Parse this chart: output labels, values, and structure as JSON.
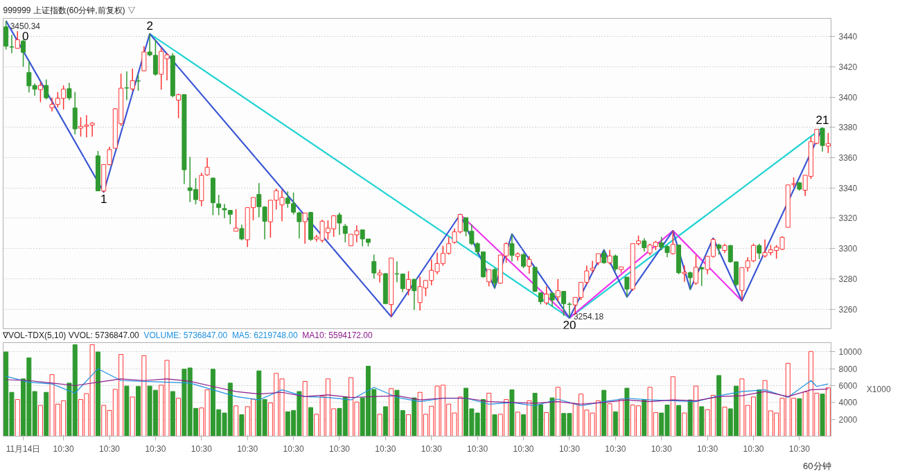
{
  "chart_data": [
    {
      "type": "candlestick",
      "title": "999999 上证指数(60分钟,前复权) ▽",
      "categories": [
        null,
        null,
        null,
        null,
        null,
        null,
        null,
        null,
        null,
        null,
        null,
        null,
        null,
        null,
        null,
        null,
        null,
        null,
        null,
        null,
        null,
        null,
        null,
        null,
        null,
        null,
        null,
        null,
        null,
        null,
        null,
        null,
        null,
        null,
        null,
        null,
        null,
        null,
        null,
        null,
        null,
        null,
        null,
        null,
        null,
        null,
        null,
        null,
        null,
        null,
        null,
        null,
        null,
        null,
        null,
        null,
        null,
        null,
        null,
        null,
        null,
        null,
        null,
        null,
        null,
        null,
        null,
        null,
        null,
        null,
        null,
        null,
        null,
        null,
        null,
        null,
        null,
        null,
        null,
        null,
        null,
        null,
        null,
        null,
        null,
        null,
        null,
        null,
        null,
        null,
        null,
        null,
        null,
        null,
        null,
        null,
        null,
        null,
        null,
        null,
        null,
        null,
        null,
        null,
        null,
        null,
        null,
        null,
        null,
        null,
        null,
        null,
        null,
        null,
        null,
        null,
        null,
        null,
        null,
        null,
        null,
        null,
        null,
        null,
        null,
        null,
        null,
        null,
        null,
        null,
        null,
        null,
        null,
        null,
        null,
        null,
        null,
        null,
        null,
        null,
        null,
        null,
        null,
        null
      ],
      "ohlc": [
        [
          3446.4,
          3450.34,
          3431.4,
          3433.6
        ],
        [
          3433.2,
          3441,
          3429,
          3433.0
        ],
        [
          3432.2,
          3443.5,
          3432,
          3437.9
        ],
        [
          3437,
          3438,
          3420,
          3429.5
        ],
        [
          3416.2,
          3424,
          3403,
          3407.4
        ],
        [
          3407.7,
          3409,
          3401,
          3405.2
        ],
        [
          3404.9,
          3410,
          3396.6,
          3407.7
        ],
        [
          3407.7,
          3411.7,
          3398.5,
          3399.5
        ],
        [
          3392.9,
          3399.6,
          3390.6,
          3395.2
        ],
        [
          3395.2,
          3403.4,
          3393.2,
          3399.2
        ],
        [
          3399.2,
          3407.7,
          3391.8,
          3405.2
        ],
        [
          3405.6,
          3409.4,
          3398,
          3399.5
        ],
        [
          3392.8,
          3403.4,
          3375.3,
          3379
        ],
        [
          3379.5,
          3386.7,
          3373.9,
          3380.7
        ],
        [
          3380.7,
          3388,
          3373.4,
          3381.5
        ],
        [
          3381.5,
          3383.5,
          3373.9,
          3382.8
        ],
        [
          3361.2,
          3364.4,
          3338,
          3338.1
        ],
        [
          3338,
          3355.5,
          3337.3,
          3355.5
        ],
        [
          3355.4,
          3367.2,
          3355,
          3365.3
        ],
        [
          3366.2,
          3392.7,
          3366,
          3392.3
        ],
        [
          3382.4,
          3415.5,
          3381,
          3405.9
        ],
        [
          3406.1,
          3417,
          3398,
          3406
        ],
        [
          3405.4,
          3418.8,
          3404,
          3410.8
        ],
        [
          3410.7,
          3414.8,
          3404.2,
          3410.6
        ],
        [
          3417.4,
          3433.6,
          3417,
          3429.8
        ],
        [
          3429.8,
          3441.8,
          3427,
          3427.9
        ],
        [
          3427.6,
          3437.9,
          3414.1,
          3415.1
        ],
        [
          3415.1,
          3432.6,
          3404.9,
          3430.2
        ],
        [
          3425.3,
          3429,
          3411,
          3427.9
        ],
        [
          3427.3,
          3429,
          3399.9,
          3400.9
        ],
        [
          3398,
          3402.3,
          3386.1,
          3401.6
        ],
        [
          3401.7,
          3401.7,
          3342.6,
          3352
        ],
        [
          3340.1,
          3360.5,
          3330.6,
          3338.3
        ],
        [
          3339,
          3346.5,
          3329.2,
          3332.3
        ],
        [
          3331.6,
          3350.1,
          3328,
          3348.3
        ],
        [
          3348.7,
          3360,
          3348,
          3353.7
        ],
        [
          3346.5,
          3347,
          3322,
          3330.2
        ],
        [
          3329.5,
          3335.4,
          3322,
          3327
        ],
        [
          3326.4,
          3329.5,
          3320,
          3325.5
        ],
        [
          3325.2,
          3325.5,
          3316,
          3322.6
        ],
        [
          3311.4,
          3326,
          3311.4,
          3313.5
        ],
        [
          3313.2,
          3315.7,
          3305.4,
          3306.3
        ],
        [
          3305.8,
          3327,
          3301,
          3327
        ],
        [
          3327,
          3333.7,
          3318.6,
          3333.7
        ],
        [
          3335.7,
          3343.2,
          3320.7,
          3327.6
        ],
        [
          3327.4,
          3328,
          3306,
          3318
        ],
        [
          3317.7,
          3331.9,
          3307.2,
          3331.9
        ],
        [
          3331.9,
          3339.6,
          3325.8,
          3338.2
        ],
        [
          3328.8,
          3338.7,
          3318,
          3333.7
        ],
        [
          3333.3,
          3337.7,
          3327,
          3329.7
        ],
        [
          3329.7,
          3337,
          3322.5,
          3324
        ],
        [
          3323.6,
          3324.3,
          3306.7,
          3317.7
        ],
        [
          3317.7,
          3323.4,
          3303.2,
          3323.4
        ],
        [
          3323.8,
          3324.3,
          3305,
          3306
        ],
        [
          3306.3,
          3309,
          3304.5,
          3307.6
        ],
        [
          3305.4,
          3319,
          3304,
          3318
        ],
        [
          3310.5,
          3318.6,
          3305.8,
          3313.5
        ],
        [
          3313,
          3322,
          3307.7,
          3321.6
        ],
        [
          3322.2,
          3323.8,
          3309,
          3316.8
        ],
        [
          3314.8,
          3316.2,
          3304.1,
          3309.9
        ],
        [
          3301.8,
          3309.4,
          3301.8,
          3309.4
        ],
        [
          3309,
          3315.3,
          3304.1,
          3311.7
        ],
        [
          3312.3,
          3312.3,
          3301.4,
          3306.3
        ],
        [
          3306.3,
          3306.3,
          3301.4,
          3304
        ],
        [
          3291.4,
          3296,
          3280.2,
          3283.8
        ],
        [
          3282.5,
          3286,
          3277.5,
          3283.8
        ],
        [
          3283.4,
          3283.8,
          3263.6,
          3263.6
        ],
        [
          3263,
          3293.7,
          3255,
          3293.7
        ],
        [
          3283.3,
          3291.5,
          3277.8,
          3283.2
        ],
        [
          3283.2,
          3283.2,
          3271.2,
          3273.5
        ],
        [
          3273,
          3285,
          3269,
          3279.6
        ],
        [
          3279.6,
          3280.2,
          3259.5,
          3272.1
        ],
        [
          3264.3,
          3281.4,
          3259,
          3274.8
        ],
        [
          3273.9,
          3278.9,
          3268.5,
          3278.9
        ],
        [
          3278.9,
          3292.8,
          3275.7,
          3285.6
        ],
        [
          3284.7,
          3297.3,
          3283,
          3290.1
        ],
        [
          3290.1,
          3301.8,
          3288.6,
          3296.8
        ],
        [
          3296.9,
          3307.7,
          3296,
          3303.2
        ],
        [
          3304.1,
          3313.2,
          3303.2,
          3311
        ],
        [
          3311,
          3322.5,
          3310,
          3322.5
        ],
        [
          3320.4,
          3320.4,
          3308.1,
          3311.4
        ],
        [
          3311.4,
          3315.9,
          3302.3,
          3303.2
        ],
        [
          3303.2,
          3304.1,
          3296,
          3297.8
        ],
        [
          3297.8,
          3297.8,
          3280.7,
          3281.3
        ],
        [
          3278,
          3286.1,
          3275,
          3286.1
        ],
        [
          3286.1,
          3287,
          3273.9,
          3277.1
        ],
        [
          3277.1,
          3295.7,
          3276.8,
          3295.7
        ],
        [
          3295.1,
          3304.1,
          3290.6,
          3303.2
        ],
        [
          3303.2,
          3309.5,
          3291.5,
          3295.5
        ],
        [
          3294.8,
          3297.5,
          3292,
          3296.4
        ],
        [
          3296,
          3296.9,
          3287,
          3288.3
        ],
        [
          3288.3,
          3295.1,
          3283.4,
          3292.8
        ],
        [
          3287.6,
          3288,
          3271.2,
          3271.7
        ],
        [
          3270.8,
          3270.8,
          3263.1,
          3264.9
        ],
        [
          3264.1,
          3275,
          3262.7,
          3269.9
        ],
        [
          3270.5,
          3270.8,
          3261.8,
          3266
        ],
        [
          3268.1,
          3279.8,
          3265,
          3272.1
        ],
        [
          3271.7,
          3271.7,
          3255.5,
          3263.6
        ],
        [
          3263.2,
          3264.5,
          3254.18,
          3263.1
        ],
        [
          3262.7,
          3267.7,
          3256.4,
          3267.7
        ],
        [
          3267.7,
          3277.7,
          3266,
          3277.7
        ],
        [
          3277.7,
          3288.8,
          3276,
          3285.2
        ],
        [
          3285.8,
          3291.9,
          3284,
          3287
        ],
        [
          3290.6,
          3296.6,
          3289,
          3296.6
        ],
        [
          3296.9,
          3299.1,
          3290,
          3290.6
        ],
        [
          3290.6,
          3299.1,
          3289.4,
          3295.1
        ],
        [
          3295.1,
          3296,
          3285,
          3286.5
        ],
        [
          3286.1,
          3287.9,
          3284,
          3287.9
        ],
        [
          3281.1,
          3281.1,
          3268,
          3273.2
        ],
        [
          3273.2,
          3303.2,
          3272,
          3303.2
        ],
        [
          3303.2,
          3308.6,
          3302,
          3305
        ],
        [
          3305,
          3306.8,
          3298,
          3300.5
        ],
        [
          3297,
          3303.2,
          3295.5,
          3302.3
        ],
        [
          3301.4,
          3305,
          3299,
          3304.1
        ],
        [
          3303.8,
          3307.7,
          3299,
          3300.9
        ],
        [
          3301.4,
          3302.3,
          3294.2,
          3297.3
        ],
        [
          3296.6,
          3311.7,
          3296,
          3302.7
        ],
        [
          3302.3,
          3302.3,
          3283,
          3284
        ],
        [
          3283.4,
          3288.8,
          3278,
          3284.3
        ],
        [
          3284,
          3284.7,
          3273,
          3280.7
        ],
        [
          3277.1,
          3295.5,
          3276,
          3287.6
        ],
        [
          3287.4,
          3288,
          3275.3,
          3286.5
        ],
        [
          3286.1,
          3295.1,
          3283,
          3294.8
        ],
        [
          3294.8,
          3306.8,
          3294,
          3306
        ],
        [
          3302.3,
          3303.2,
          3296,
          3300.2
        ],
        [
          3298.7,
          3303.2,
          3297,
          3302
        ],
        [
          3302,
          3302.3,
          3290.6,
          3291.2
        ],
        [
          3291.2,
          3291.5,
          3275,
          3276.2
        ],
        [
          3272.3,
          3287.4,
          3265.4,
          3287.4
        ],
        [
          3287.4,
          3294.2,
          3284.7,
          3291.9
        ],
        [
          3291.9,
          3303.2,
          3291,
          3302
        ],
        [
          3302,
          3303.2,
          3293,
          3296.9
        ],
        [
          3295.1,
          3306,
          3294,
          3297.3
        ],
        [
          3297.3,
          3302.3,
          3295.5,
          3299.1
        ],
        [
          3298.7,
          3302.3,
          3293.3,
          3300.9
        ],
        [
          3299.6,
          3308.1,
          3299,
          3307.4
        ],
        [
          3314,
          3342,
          3314,
          3342
        ],
        [
          3342.4,
          3347,
          3340.3,
          3342.8
        ],
        [
          3343.4,
          3343.9,
          3338.2,
          3339.2
        ],
        [
          3338.5,
          3348.4,
          3334.6,
          3348.4
        ],
        [
          3347.7,
          3373.7,
          3346,
          3370.6
        ],
        [
          3369.5,
          3379,
          3368.8,
          3378.7
        ],
        [
          3379.4,
          3379.7,
          3364,
          3368
        ],
        [
          3367.6,
          3376.3,
          3363.1,
          3369.3
        ]
      ],
      "colors": [
        "#2f9a30",
        "#2f9a30",
        "#ff3232",
        "#2f9a30",
        "#2f9a30",
        "#2f9a30",
        "#ff3232",
        "#2f9a30",
        "#ff3232",
        "#ff3232",
        "#ff3232",
        "#2f9a30",
        "#2f9a30",
        "#ff3232",
        "#ff3232",
        "#ff3232",
        "#2f9a30",
        "#ff3232",
        "#ff3232",
        "#ff3232",
        "#ff3232",
        "#2f9a30",
        "#ff3232",
        "#2f9a30",
        "#ff3232",
        "#2f9a30",
        "#2f9a30",
        "#ff3232",
        "#ff3232",
        "#2f9a30",
        "#ff3232",
        "#2f9a30",
        "#2f9a30",
        "#2f9a30",
        "#ff3232",
        "#ff3232",
        "#2f9a30",
        "#2f9a30",
        "#2f9a30",
        "#2f9a30",
        "#ff3232",
        "#2f9a30",
        "#ff3232",
        "#ff3232",
        "#2f9a30",
        "#2f9a30",
        "#ff3232",
        "#ff3232",
        "#ff3232",
        "#2f9a30",
        "#2f9a30",
        "#2f9a30",
        "#ff3232",
        "#2f9a30",
        "#ff3232",
        "#ff3232",
        "#ff3232",
        "#ff3232",
        "#2f9a30",
        "#2f9a30",
        "#ff3232",
        "#ff3232",
        "#2f9a30",
        "#2f9a30",
        "#2f9a30",
        "#ff3232",
        "#2f9a30",
        "#ff3232",
        "#2f9a30",
        "#2f9a30",
        "#ff3232",
        "#2f9a30",
        "#ff3232",
        "#ff3232",
        "#ff3232",
        "#ff3232",
        "#ff3232",
        "#ff3232",
        "#ff3232",
        "#ff3232",
        "#2f9a30",
        "#2f9a30",
        "#2f9a30",
        "#2f9a30",
        "#ff3232",
        "#2f9a30",
        "#ff3232",
        "#ff3232",
        "#2f9a30",
        "#ff3232",
        "#2f9a30",
        "#ff3232",
        "#2f9a30",
        "#2f9a30",
        "#ff3232",
        "#2f9a30",
        "#ff3232",
        "#2f9a30",
        "#2f9a30",
        "#ff3232",
        "#ff3232",
        "#ff3232",
        "#ff3232",
        "#ff3232",
        "#2f9a30",
        "#ff3232",
        "#2f9a30",
        "#ff3232",
        "#2f9a30",
        "#ff3232",
        "#ff3232",
        "#2f9a30",
        "#ff3232",
        "#ff3232",
        "#2f9a30",
        "#2f9a30",
        "#ff3232",
        "#2f9a30",
        "#ff3232",
        "#2f9a30",
        "#ff3232",
        "#2f9a30",
        "#ff3232",
        "#ff3232",
        "#2f9a30",
        "#ff3232",
        "#2f9a30",
        "#2f9a30",
        "#ff3232",
        "#ff3232",
        "#ff3232",
        "#2f9a30",
        "#ff3232",
        "#ff3232",
        "#ff3232",
        "#ff3232",
        "#ff3232",
        "#ff3232",
        "#2f9a30",
        "#ff3232",
        "#ff3232",
        "#ff3232",
        "#2f9a30",
        "#ff3232"
      ],
      "series": [
        {
          "type": "line",
          "color": "#22d3d3",
          "values": [
            null,
            null,
            null,
            null,
            null,
            null,
            null,
            null,
            null,
            null,
            null,
            null,
            null,
            null,
            null,
            null,
            null,
            null,
            null,
            null,
            null,
            null,
            null,
            null,
            null,
            3441.8,
            null,
            null,
            null,
            null,
            null,
            null,
            null,
            null,
            null,
            null,
            null,
            null,
            null,
            null,
            null,
            null,
            null,
            null,
            null,
            null,
            null,
            null,
            null,
            null,
            null,
            null,
            null,
            null,
            null,
            null,
            null,
            null,
            null,
            null,
            null,
            null,
            null,
            null,
            null,
            null,
            null,
            null,
            null,
            null,
            null,
            null,
            null,
            null,
            null,
            null,
            null,
            null,
            null,
            null,
            null,
            null,
            null,
            null,
            null,
            null,
            null,
            null,
            null,
            null,
            null,
            null,
            null,
            null,
            null,
            null,
            null,
            null,
            3254.18,
            null,
            null,
            null,
            null,
            null,
            null,
            null,
            null,
            null,
            null,
            null,
            null,
            null,
            null,
            null,
            null,
            null,
            null,
            null,
            null,
            null,
            null,
            null,
            null,
            null,
            null,
            null,
            null,
            null,
            null,
            null,
            null,
            null,
            null,
            null,
            null,
            null,
            null,
            null,
            null,
            null,
            null,
            null,
            3379.7,
            null
          ]
        },
        {
          "type": "line",
          "color": "#ee33ee",
          "values": [
            null,
            null,
            null,
            null,
            null,
            null,
            null,
            null,
            null,
            null,
            null,
            null,
            null,
            null,
            null,
            null,
            null,
            null,
            null,
            null,
            null,
            null,
            null,
            null,
            null,
            null,
            null,
            null,
            null,
            null,
            null,
            null,
            null,
            null,
            null,
            null,
            null,
            null,
            null,
            null,
            null,
            null,
            null,
            null,
            null,
            null,
            null,
            null,
            null,
            null,
            null,
            null,
            null,
            null,
            null,
            null,
            null,
            null,
            null,
            null,
            null,
            null,
            null,
            null,
            null,
            null,
            null,
            null,
            null,
            null,
            null,
            null,
            null,
            null,
            null,
            null,
            null,
            null,
            null,
            3322.5,
            null,
            null,
            null,
            null,
            null,
            null,
            null,
            null,
            null,
            null,
            null,
            null,
            null,
            null,
            null,
            null,
            null,
            null,
            3254.18,
            null,
            null,
            null,
            null,
            null,
            null,
            null,
            null,
            null,
            null,
            null,
            null,
            null,
            null,
            null,
            null,
            null,
            3311.7,
            null,
            null,
            null,
            null,
            null,
            null,
            null,
            null,
            null,
            null,
            null,
            3265.4,
            null,
            null,
            null,
            null,
            null,
            null,
            null,
            null,
            null,
            null,
            null,
            null,
            null,
            null,
            null
          ]
        },
        {
          "type": "line",
          "color": "#3a56d4",
          "values": [
            3450.34,
            null,
            null,
            null,
            null,
            null,
            null,
            null,
            null,
            null,
            null,
            null,
            null,
            null,
            null,
            null,
            null,
            3337.3,
            null,
            null,
            null,
            null,
            null,
            null,
            null,
            3441.8,
            null,
            null,
            null,
            null,
            null,
            null,
            null,
            null,
            null,
            null,
            null,
            null,
            null,
            null,
            null,
            null,
            null,
            null,
            null,
            null,
            null,
            null,
            null,
            null,
            null,
            null,
            null,
            null,
            null,
            null,
            null,
            null,
            null,
            null,
            null,
            null,
            null,
            null,
            null,
            null,
            null,
            3255,
            null,
            null,
            null,
            null,
            null,
            null,
            null,
            null,
            null,
            null,
            null,
            3322.5,
            null,
            null,
            null,
            null,
            null,
            3273.9,
            null,
            null,
            3309.5,
            null,
            null,
            null,
            null,
            null,
            null,
            null,
            null,
            null,
            3254.18,
            null,
            null,
            null,
            null,
            null,
            3299.1,
            null,
            null,
            null,
            3268,
            null,
            null,
            null,
            null,
            null,
            null,
            null,
            3311.7,
            null,
            null,
            3273,
            null,
            null,
            null,
            3306.8,
            null,
            null,
            null,
            null,
            3265.4,
            null,
            null,
            null,
            null,
            null,
            null,
            null,
            null,
            null,
            null,
            null,
            null,
            null,
            3379.7,
            null
          ]
        }
      ],
      "annotations": [
        "0",
        "3450.34",
        "1",
        "2",
        "20",
        "3254.18",
        "21"
      ],
      "ylim": [
        3247,
        3452
      ],
      "yticks": [
        3260,
        3280,
        3300,
        3320,
        3340,
        3360,
        3380,
        3400,
        3420,
        3440
      ],
      "grid": "y",
      "tick_labels": "y"
    },
    {
      "type": "bar",
      "title": "∇VOL-TDX(5,10) VVOL: 5736847.00",
      "categories": [
        null,
        null,
        null,
        "11月14日",
        null,
        null,
        null,
        null,
        null,
        null,
        "10:30",
        null,
        null,
        null,
        null,
        null,
        null,
        null,
        "10:30",
        null,
        null,
        null,
        null,
        null,
        null,
        null,
        "10:30",
        null,
        null,
        null,
        null,
        null,
        null,
        null,
        "10:30",
        null,
        null,
        null,
        null,
        null,
        null,
        null,
        "10:30",
        null,
        null,
        null,
        null,
        null,
        null,
        null,
        "10:30",
        null,
        null,
        null,
        null,
        null,
        null,
        null,
        "10:30",
        null,
        null,
        null,
        null,
        null,
        null,
        null,
        "10:30",
        null,
        null,
        null,
        null,
        null,
        null,
        null,
        "10:30",
        null,
        null,
        null,
        null,
        null,
        null,
        null,
        "10:30",
        null,
        null,
        null,
        null,
        null,
        null,
        null,
        "10:30",
        null,
        null,
        null,
        null,
        null,
        null,
        null,
        "10:30",
        null,
        null,
        null,
        null,
        null,
        null,
        null,
        "10:30",
        null,
        null,
        null,
        null,
        null,
        null,
        null,
        "10:30",
        null,
        null,
        null,
        null,
        null,
        null,
        null,
        "10:30",
        null,
        null,
        null,
        null,
        null,
        null,
        null,
        "10:30",
        null,
        null,
        null,
        null,
        null,
        null,
        null,
        "10:30",
        null,
        null,
        null,
        null,
        null
      ],
      "values": [
        10000,
        5200,
        4350,
        6800,
        9300,
        5300,
        3650,
        5200,
        7300,
        3800,
        4200,
        6300,
        10850,
        4350,
        5050,
        10850,
        10000,
        3650,
        3050,
        5550,
        9700,
        5950,
        4650,
        5900,
        9550,
        5950,
        5450,
        6050,
        9000,
        5300,
        4500,
        7950,
        8100,
        3300,
        3350,
        5500,
        7950,
        3150,
        2750,
        6300,
        3600,
        2550,
        3500,
        4400,
        7750,
        4350,
        3950,
        7450,
        6800,
        2900,
        3050,
        5300,
        6500,
        3400,
        2600,
        4750,
        6800,
        3250,
        3300,
        4650,
        6950,
        4050,
        4550,
        8300,
        5550,
        2600,
        3500,
        5650,
        5450,
        3050,
        2550,
        4550,
        5200,
        2600,
        3550,
        5950,
        6050,
        3800,
        2750,
        4650,
        5700,
        3250,
        2750,
        4350,
        5100,
        2550,
        2600,
        4350,
        5500,
        2850,
        2550,
        4200,
        5100,
        3750,
        2800,
        4550,
        5800,
        2700,
        2700,
        3800,
        5000,
        3100,
        2750,
        4200,
        5450,
        3850,
        2900,
        4400,
        5700,
        3700,
        3600,
        4300,
        5800,
        2800,
        2750,
        3700,
        7050,
        3650,
        2750,
        4300,
        5950,
        3500,
        3150,
        4850,
        7200,
        3450,
        3250,
        5950,
        6800,
        3650,
        4650,
        5500,
        6600,
        3000,
        2750,
        4500,
        8650,
        4500,
        4450,
        5250,
        10050,
        5100,
        5000,
        5740
      ],
      "colors": [
        "#2f9a30",
        "#2f9a30",
        "#ff3232",
        "#2f9a30",
        "#2f9a30",
        "#2f9a30",
        "#ff3232",
        "#2f9a30",
        "#ff3232",
        "#ff3232",
        "#ff3232",
        "#2f9a30",
        "#2f9a30",
        "#ff3232",
        "#ff3232",
        "#ff3232",
        "#2f9a30",
        "#ff3232",
        "#ff3232",
        "#ff3232",
        "#ff3232",
        "#2f9a30",
        "#ff3232",
        "#2f9a30",
        "#ff3232",
        "#2f9a30",
        "#2f9a30",
        "#ff3232",
        "#ff3232",
        "#2f9a30",
        "#ff3232",
        "#2f9a30",
        "#2f9a30",
        "#2f9a30",
        "#ff3232",
        "#ff3232",
        "#2f9a30",
        "#2f9a30",
        "#2f9a30",
        "#2f9a30",
        "#ff3232",
        "#2f9a30",
        "#ff3232",
        "#ff3232",
        "#2f9a30",
        "#2f9a30",
        "#ff3232",
        "#ff3232",
        "#ff3232",
        "#2f9a30",
        "#2f9a30",
        "#2f9a30",
        "#ff3232",
        "#2f9a30",
        "#ff3232",
        "#ff3232",
        "#ff3232",
        "#ff3232",
        "#2f9a30",
        "#2f9a30",
        "#ff3232",
        "#ff3232",
        "#2f9a30",
        "#2f9a30",
        "#2f9a30",
        "#ff3232",
        "#2f9a30",
        "#ff3232",
        "#2f9a30",
        "#2f9a30",
        "#ff3232",
        "#2f9a30",
        "#ff3232",
        "#ff3232",
        "#ff3232",
        "#ff3232",
        "#ff3232",
        "#ff3232",
        "#ff3232",
        "#ff3232",
        "#2f9a30",
        "#2f9a30",
        "#2f9a30",
        "#2f9a30",
        "#ff3232",
        "#2f9a30",
        "#ff3232",
        "#ff3232",
        "#2f9a30",
        "#ff3232",
        "#2f9a30",
        "#ff3232",
        "#2f9a30",
        "#2f9a30",
        "#ff3232",
        "#2f9a30",
        "#ff3232",
        "#2f9a30",
        "#2f9a30",
        "#ff3232",
        "#ff3232",
        "#ff3232",
        "#ff3232",
        "#ff3232",
        "#2f9a30",
        "#ff3232",
        "#2f9a30",
        "#ff3232",
        "#2f9a30",
        "#ff3232",
        "#ff3232",
        "#2f9a30",
        "#ff3232",
        "#ff3232",
        "#2f9a30",
        "#2f9a30",
        "#ff3232",
        "#2f9a30",
        "#ff3232",
        "#2f9a30",
        "#ff3232",
        "#2f9a30",
        "#ff3232",
        "#ff3232",
        "#2f9a30",
        "#ff3232",
        "#2f9a30",
        "#2f9a30",
        "#ff3232",
        "#ff3232",
        "#ff3232",
        "#2f9a30",
        "#ff3232",
        "#ff3232",
        "#ff3232",
        "#ff3232",
        "#ff3232",
        "#ff3232",
        "#2f9a30",
        "#ff3232",
        "#ff3232",
        "#ff3232",
        "#2f9a30",
        "#ff3232"
      ],
      "series": [
        {
          "type": "line",
          "name": "MA5: 6219748.00",
          "color": "#1e90e0",
          "values": [
            7100,
            null,
            null,
            null,
            6400,
            null,
            null,
            null,
            6200,
            null,
            null,
            null,
            5100,
            null,
            null,
            null,
            8000,
            null,
            null,
            null,
            6600,
            null,
            null,
            null,
            6500,
            null,
            null,
            null,
            6400,
            null,
            null,
            null,
            6300,
            null,
            null,
            null,
            5500,
            null,
            null,
            null,
            4700,
            null,
            null,
            null,
            4300,
            null,
            null,
            null,
            5500,
            null,
            null,
            null,
            4700,
            null,
            null,
            null,
            4600,
            null,
            null,
            null,
            4300,
            null,
            null,
            null,
            5800,
            null,
            null,
            null,
            4600,
            null,
            null,
            null,
            4100,
            null,
            null,
            null,
            4500,
            null,
            null,
            null,
            4500,
            null,
            null,
            null,
            3800,
            null,
            null,
            null,
            4000,
            null,
            null,
            null,
            3600,
            null,
            null,
            null,
            4400,
            null,
            null,
            null,
            3600,
            null,
            null,
            null,
            4100,
            null,
            null,
            null,
            4500,
            null,
            null,
            null,
            4300,
            null,
            null,
            null,
            4200,
            null,
            null,
            null,
            4100,
            null,
            null,
            null,
            4800,
            null,
            null,
            null,
            5300,
            null,
            null,
            null,
            5500,
            null,
            null,
            null,
            4600,
            null,
            null,
            null,
            6600,
            5900,
            null,
            6200
          ]
        },
        {
          "type": "line",
          "name": "MA10: 5594172.00",
          "color": "#8b1a8b",
          "values": [
            6700,
            null,
            null,
            null,
            6600,
            null,
            null,
            null,
            6300,
            null,
            null,
            null,
            6000,
            null,
            null,
            null,
            6400,
            null,
            null,
            null,
            6800,
            null,
            null,
            null,
            6600,
            null,
            null,
            null,
            6800,
            null,
            null,
            null,
            6500,
            null,
            null,
            null,
            5900,
            null,
            null,
            null,
            5300,
            null,
            null,
            null,
            5000,
            null,
            null,
            null,
            5200,
            null,
            null,
            null,
            4700,
            null,
            null,
            null,
            4900,
            null,
            null,
            null,
            4600,
            null,
            null,
            null,
            4700,
            null,
            null,
            null,
            4800,
            null,
            null,
            null,
            4300,
            null,
            null,
            null,
            4500,
            null,
            null,
            null,
            4500,
            null,
            null,
            null,
            4100,
            null,
            null,
            null,
            4000,
            null,
            null,
            null,
            3900,
            null,
            null,
            null,
            4100,
            null,
            null,
            null,
            3800,
            null,
            null,
            null,
            4000,
            null,
            null,
            null,
            4300,
            null,
            null,
            null,
            4100,
            null,
            null,
            null,
            4300,
            null,
            null,
            null,
            4200,
            null,
            null,
            null,
            4700,
            null,
            null,
            null,
            4800,
            null,
            null,
            null,
            5300,
            null,
            null,
            null,
            4700,
            null,
            null,
            null,
            5500,
            null,
            null,
            5600
          ]
        }
      ],
      "annotations": [
        "VOLUME: 5736847.00",
        "X1000",
        "60分钟"
      ],
      "ylim": [
        0,
        11100
      ],
      "yticks": [
        2000,
        4000,
        6000,
        8000,
        10000
      ],
      "grid": "y",
      "legend": "top left"
    }
  ]
}
